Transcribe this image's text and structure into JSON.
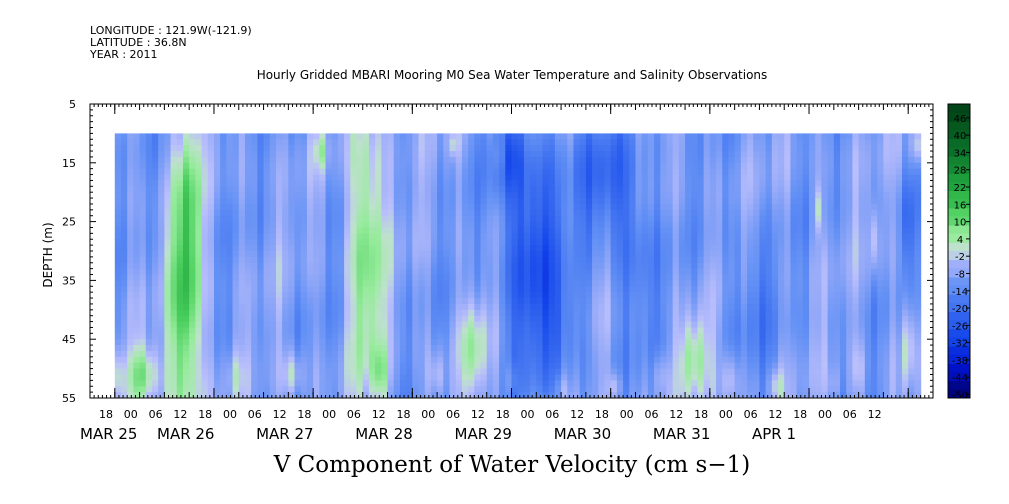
{
  "header": {
    "longitude": "LONGITUDE : 121.9W(-121.9)",
    "latitude": "LATITUDE : 36.8N",
    "year": "YEAR : 2011"
  },
  "chart_data": {
    "type": "heatmap",
    "title": "Hourly Gridded MBARI Mooring M0 Sea Water Temperature and Salinity Observations",
    "xlabel": "V Component of Water Velocity (cm s−1)",
    "ylabel": "DEPTH (m)",
    "ylim": [
      55,
      5
    ],
    "yticks": [
      "5",
      "15",
      "25",
      "35",
      "45",
      "55"
    ],
    "xlim_hours": [
      0,
      204
    ],
    "hour_ticks": [
      "18",
      "00",
      "06",
      "12",
      "18",
      "00",
      "06",
      "12",
      "18",
      "00",
      "06",
      "12",
      "18",
      "00",
      "06",
      "12",
      "18",
      "00",
      "06",
      "12",
      "18",
      "00",
      "06",
      "12",
      "18",
      "00",
      "06",
      "12",
      "18",
      "00",
      "06",
      "12"
    ],
    "date_labels": [
      "MAR 25",
      "MAR 26",
      "MAR 27",
      "MAR 28",
      "MAR 29",
      "MAR 30",
      "MAR 31",
      "APR 1"
    ],
    "data_start": "2011-03-25 18:00",
    "data_end": "2011-04-02 15:00",
    "depth_range": [
      10,
      55
    ],
    "colorbar": {
      "levels": [
        -50,
        -44,
        -38,
        -32,
        -26,
        -20,
        -14,
        -8,
        -2,
        4,
        10,
        16,
        22,
        28,
        34,
        40,
        46
      ],
      "labels": [
        "46",
        "40",
        "34",
        "28",
        "22",
        "16",
        "10",
        "4",
        "-2",
        "-8",
        "-14",
        "-20",
        "-26",
        "-32",
        "-38",
        "-44",
        "-50"
      ],
      "min": -50,
      "max": 52
    },
    "grid": false,
    "legend": "colorbar-right"
  }
}
